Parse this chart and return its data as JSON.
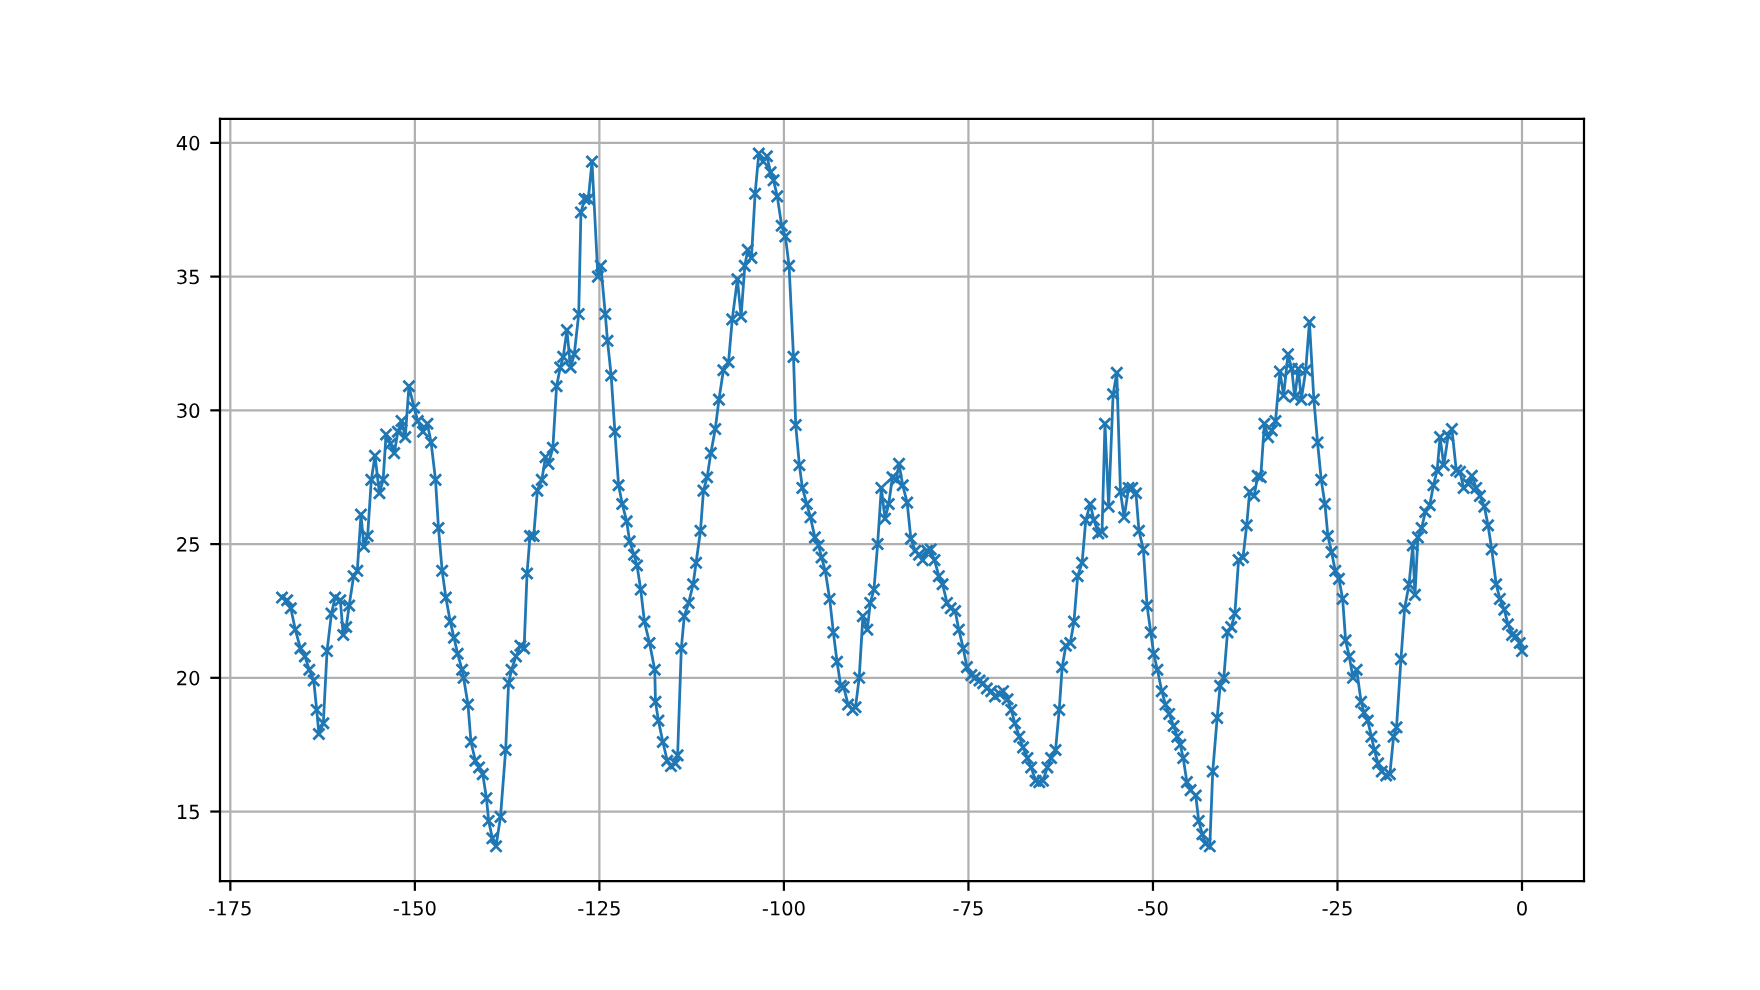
{
  "chart_data": {
    "type": "line",
    "marker": "cross",
    "line_style": "solid",
    "grid": true,
    "xlim": [
      -176.4,
      8.4
    ],
    "ylim": [
      12.4,
      40.9
    ],
    "xticks": [
      -175,
      -150,
      -125,
      -100,
      -75,
      -50,
      -25,
      0
    ],
    "yticks": [
      15,
      20,
      25,
      30,
      35,
      40
    ],
    "series": [
      {
        "color": "#1f77b4",
        "x": [
          -168.0,
          -167.3,
          -166.8,
          -166.2,
          -165.5,
          -164.9,
          -164.3,
          -163.7,
          -163.3,
          -163.0,
          -162.4,
          -161.9,
          -161.3,
          -160.8,
          -160.1,
          -159.7,
          -159.3,
          -158.9,
          -158.3,
          -157.8,
          -157.3,
          -156.9,
          -156.4,
          -155.9,
          -155.4,
          -154.8,
          -154.3,
          -153.9,
          -153.3,
          -152.8,
          -152.3,
          -151.8,
          -151.3,
          -150.8,
          -150.1,
          -149.6,
          -148.9,
          -148.3,
          -147.8,
          -147.2,
          -146.8,
          -146.3,
          -145.8,
          -145.2,
          -144.7,
          -144.2,
          -143.6,
          -143.4,
          -142.8,
          -142.4,
          -141.8,
          -141.3,
          -140.8,
          -140.3,
          -140.0,
          -139.5,
          -139.0,
          -138.4,
          -137.7,
          -137.3,
          -136.9,
          -136.3,
          -135.7,
          -135.2,
          -134.8,
          -134.4,
          -133.9,
          -133.4,
          -132.8,
          -132.3,
          -131.9,
          -131.3,
          -130.8,
          -130.3,
          -129.9,
          -129.4,
          -128.9,
          -128.4,
          -127.8,
          -127.5,
          -127.0,
          -126.5,
          -126.0,
          -125.2,
          -124.8,
          -124.2,
          -123.9,
          -123.4,
          -122.9,
          -122.4,
          -121.9,
          -121.3,
          -120.9,
          -120.3,
          -119.9,
          -119.4,
          -118.9,
          -118.2,
          -117.5,
          -117.4,
          -117.0,
          -116.4,
          -115.8,
          -115.3,
          -114.7,
          -114.4,
          -113.9,
          -113.5,
          -112.9,
          -112.3,
          -111.9,
          -111.3,
          -110.9,
          -110.4,
          -109.9,
          -109.3,
          -108.8,
          -108.2,
          -107.5,
          -107.0,
          -106.3,
          -105.8,
          -105.3,
          -104.9,
          -104.4,
          -103.9,
          -103.4,
          -102.8,
          -102.3,
          -101.8,
          -101.4,
          -100.9,
          -100.3,
          -99.8,
          -99.3,
          -98.7,
          -98.4,
          -97.9,
          -97.5,
          -96.9,
          -96.4,
          -95.8,
          -95.3,
          -94.9,
          -94.4,
          -93.8,
          -93.3,
          -92.8,
          -92.3,
          -91.9,
          -91.3,
          -90.7,
          -90.3,
          -89.8,
          -89.3,
          -88.7,
          -88.3,
          -87.8,
          -87.3,
          -86.8,
          -86.3,
          -85.8,
          -85.3,
          -84.8,
          -84.4,
          -83.9,
          -83.3,
          -82.8,
          -82.2,
          -81.7,
          -81.2,
          -80.6,
          -80.1,
          -79.6,
          -79.0,
          -78.5,
          -77.9,
          -77.4,
          -76.8,
          -76.3,
          -75.7,
          -75.2,
          -74.6,
          -74.1,
          -73.5,
          -73.0,
          -72.5,
          -71.9,
          -71.4,
          -70.8,
          -70.3,
          -69.7,
          -69.2,
          -68.7,
          -68.1,
          -67.6,
          -67.0,
          -66.5,
          -65.9,
          -65.4,
          -64.9,
          -64.3,
          -63.8,
          -63.2,
          -62.7,
          -62.3,
          -61.8,
          -61.2,
          -60.7,
          -60.2,
          -59.6,
          -59.1,
          -58.5,
          -58.0,
          -57.4,
          -56.9,
          -56.5,
          -56.0,
          -55.4,
          -54.9,
          -54.4,
          -53.9,
          -53.3,
          -52.8,
          -52.3,
          -51.9,
          -51.3,
          -50.8,
          -50.3,
          -49.9,
          -49.4,
          -48.8,
          -48.3,
          -47.8,
          -47.2,
          -46.7,
          -46.3,
          -45.9,
          -45.4,
          -44.9,
          -44.2,
          -43.8,
          -43.3,
          -42.9,
          -42.3,
          -41.9,
          -41.3,
          -40.9,
          -40.4,
          -39.9,
          -39.4,
          -38.9,
          -38.4,
          -37.8,
          -37.3,
          -36.9,
          -36.3,
          -35.8,
          -35.4,
          -34.9,
          -34.4,
          -33.9,
          -33.4,
          -32.8,
          -32.3,
          -31.7,
          -31.2,
          -30.8,
          -30.3,
          -29.9,
          -29.3,
          -28.8,
          -28.2,
          -27.7,
          -27.2,
          -26.7,
          -26.3,
          -25.8,
          -25.3,
          -24.8,
          -24.3,
          -23.9,
          -23.4,
          -22.9,
          -22.4,
          -21.8,
          -21.4,
          -20.9,
          -20.4,
          -20.0,
          -19.5,
          -19.0,
          -18.4,
          -17.9,
          -17.4,
          -17.0,
          -16.4,
          -15.9,
          -15.3,
          -14.8,
          -14.5,
          -14.1,
          -13.6,
          -13.1,
          -12.5,
          -12.0,
          -11.5,
          -11.1,
          -10.6,
          -10.0,
          -9.5,
          -8.9,
          -8.4,
          -7.9,
          -7.3,
          -6.8,
          -6.2,
          -5.7,
          -5.1,
          -4.6,
          -4.1,
          -3.5,
          -3.0,
          -2.4,
          -1.9,
          -1.35,
          -0.8,
          -0.3,
          0.0
        ],
        "values": [
          23.0,
          22.9,
          22.6,
          21.8,
          21.1,
          20.8,
          20.3,
          19.9,
          18.8,
          17.9,
          18.3,
          21.0,
          22.4,
          23.0,
          22.9,
          21.6,
          21.9,
          22.7,
          23.8,
          24.0,
          26.1,
          24.9,
          25.3,
          27.4,
          28.3,
          26.9,
          27.4,
          29.1,
          28.75,
          28.4,
          29.2,
          29.6,
          29.0,
          30.9,
          30.1,
          29.6,
          29.2,
          29.5,
          28.8,
          27.4,
          25.6,
          24.0,
          23.0,
          22.1,
          21.5,
          20.9,
          20.3,
          20.0,
          19.0,
          17.6,
          16.9,
          16.65,
          16.4,
          15.5,
          14.65,
          14.0,
          13.7,
          14.8,
          17.3,
          19.8,
          20.3,
          20.8,
          21.2,
          21.1,
          23.9,
          25.3,
          25.3,
          27.0,
          27.4,
          28.25,
          28.0,
          28.6,
          30.9,
          31.6,
          32.0,
          33.0,
          31.6,
          32.1,
          33.6,
          37.4,
          37.9,
          37.9,
          39.3,
          35.0,
          35.4,
          33.6,
          32.6,
          31.3,
          29.2,
          27.2,
          26.5,
          25.85,
          25.1,
          24.6,
          24.2,
          23.3,
          22.1,
          21.3,
          20.3,
          19.1,
          18.4,
          17.6,
          16.9,
          16.7,
          16.8,
          17.1,
          21.1,
          22.3,
          22.8,
          23.5,
          24.3,
          25.5,
          27.0,
          27.5,
          28.4,
          29.3,
          30.4,
          31.5,
          31.8,
          33.4,
          34.9,
          33.5,
          35.4,
          36.0,
          35.7,
          38.1,
          39.6,
          39.3,
          39.5,
          38.9,
          38.6,
          38.0,
          36.9,
          36.5,
          35.4,
          32.0,
          29.45,
          27.95,
          27.1,
          26.5,
          26.0,
          25.25,
          24.95,
          24.5,
          24.0,
          22.95,
          21.7,
          20.6,
          19.7,
          19.65,
          19.0,
          18.8,
          18.9,
          20.0,
          22.3,
          21.8,
          22.8,
          23.3,
          25.0,
          27.1,
          25.95,
          26.5,
          27.5,
          27.4,
          28.0,
          27.2,
          26.55,
          25.2,
          24.75,
          24.6,
          24.4,
          24.75,
          24.8,
          24.4,
          23.8,
          23.5,
          22.8,
          22.6,
          22.5,
          21.8,
          21.1,
          20.4,
          20.1,
          20.0,
          19.9,
          19.8,
          19.6,
          19.5,
          19.3,
          19.4,
          19.5,
          19.2,
          18.8,
          18.3,
          17.8,
          17.4,
          17.0,
          16.65,
          16.15,
          16.1,
          16.15,
          16.65,
          17.0,
          17.3,
          18.8,
          20.4,
          21.2,
          21.3,
          22.1,
          23.8,
          24.3,
          25.9,
          26.5,
          25.9,
          25.4,
          25.45,
          29.5,
          26.4,
          30.6,
          31.4,
          26.95,
          26.0,
          27.1,
          27.1,
          26.9,
          25.5,
          24.8,
          22.7,
          21.7,
          20.9,
          20.3,
          19.5,
          19.0,
          18.65,
          18.2,
          17.8,
          17.5,
          17.0,
          16.1,
          15.8,
          15.6,
          14.65,
          14.15,
          13.8,
          13.7,
          16.5,
          18.5,
          19.7,
          20.0,
          21.7,
          21.9,
          22.4,
          24.4,
          24.5,
          25.7,
          26.95,
          26.8,
          27.55,
          27.5,
          29.5,
          29.0,
          29.25,
          29.6,
          31.45,
          30.55,
          32.1,
          31.55,
          30.5,
          31.55,
          30.4,
          31.5,
          33.3,
          30.4,
          28.8,
          27.4,
          26.5,
          25.3,
          24.7,
          24.0,
          23.7,
          22.95,
          21.4,
          20.8,
          20.0,
          20.3,
          19.1,
          18.7,
          18.4,
          17.8,
          17.3,
          16.8,
          16.5,
          16.35,
          16.4,
          17.8,
          18.15,
          20.7,
          22.6,
          23.5,
          24.95,
          23.1,
          25.25,
          25.6,
          26.2,
          26.45,
          27.2,
          27.75,
          29.0,
          27.95,
          29.05,
          29.3,
          27.75,
          27.7,
          27.1,
          27.25,
          27.55,
          27.1,
          26.8,
          26.4,
          25.7,
          24.8,
          23.5,
          22.95,
          22.55,
          22.0,
          21.6,
          21.55,
          21.3,
          21.0
        ]
      }
    ]
  }
}
